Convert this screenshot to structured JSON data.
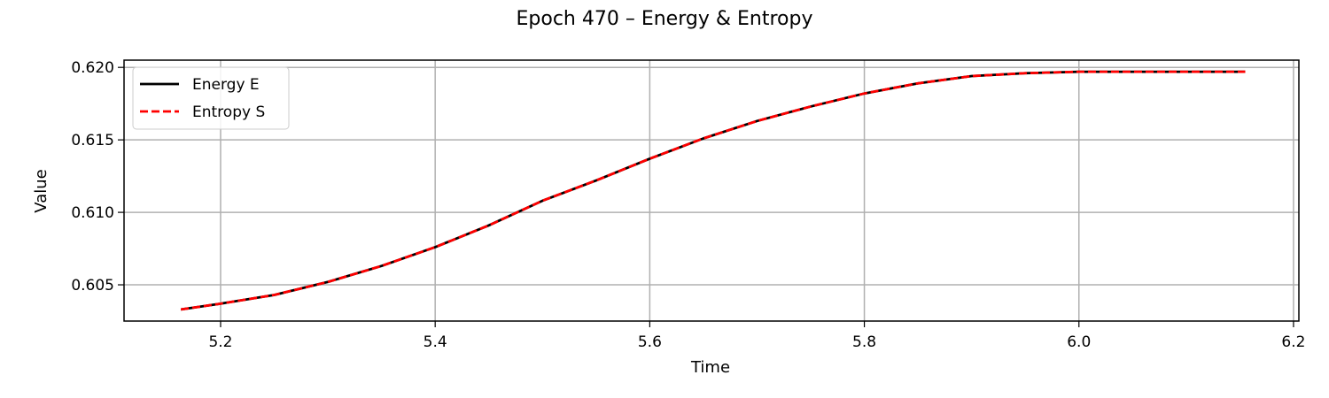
{
  "chart_data": {
    "type": "line",
    "title": "Epoch 470 – Energy & Entropy",
    "xlabel": "Time",
    "ylabel": "Value",
    "xlim": [
      5.11,
      6.205
    ],
    "ylim": [
      0.6025,
      0.6205
    ],
    "xticks": [
      5.2,
      5.4,
      5.6,
      5.8,
      6.0,
      6.2
    ],
    "xtick_labels": [
      "5.2",
      "5.4",
      "5.6",
      "5.8",
      "6.0",
      "6.2"
    ],
    "yticks": [
      0.605,
      0.61,
      0.615,
      0.62
    ],
    "ytick_labels": [
      "0.605",
      "0.610",
      "0.615",
      "0.620"
    ],
    "grid": true,
    "legend_position": "top-left",
    "series": [
      {
        "name": "Energy E",
        "color": "#000000",
        "style": "solid",
        "x": [
          5.163,
          5.2,
          5.25,
          5.3,
          5.35,
          5.4,
          5.45,
          5.5,
          5.55,
          5.6,
          5.65,
          5.7,
          5.75,
          5.8,
          5.85,
          5.9,
          5.95,
          6.0,
          6.05,
          6.1,
          6.155
        ],
        "y": [
          0.6033,
          0.6037,
          0.6043,
          0.6052,
          0.6063,
          0.6076,
          0.6091,
          0.6108,
          0.6122,
          0.6137,
          0.6151,
          0.6163,
          0.6173,
          0.6182,
          0.6189,
          0.6194,
          0.6196,
          0.6197,
          0.6197,
          0.6197,
          0.6197
        ]
      },
      {
        "name": "Entropy S",
        "color": "#ff0000",
        "style": "dashed",
        "x": [
          5.163,
          5.2,
          5.25,
          5.3,
          5.35,
          5.4,
          5.45,
          5.5,
          5.55,
          5.6,
          5.65,
          5.7,
          5.75,
          5.8,
          5.85,
          5.9,
          5.95,
          6.0,
          6.05,
          6.1,
          6.155
        ],
        "y": [
          0.6033,
          0.6037,
          0.6043,
          0.6052,
          0.6063,
          0.6076,
          0.6091,
          0.6108,
          0.6122,
          0.6137,
          0.6151,
          0.6163,
          0.6173,
          0.6182,
          0.6189,
          0.6194,
          0.6196,
          0.6197,
          0.6197,
          0.6197,
          0.6197
        ]
      }
    ]
  },
  "colors": {
    "grid": "#b0b0b0",
    "axes": "#000000",
    "background": "#ffffff"
  }
}
